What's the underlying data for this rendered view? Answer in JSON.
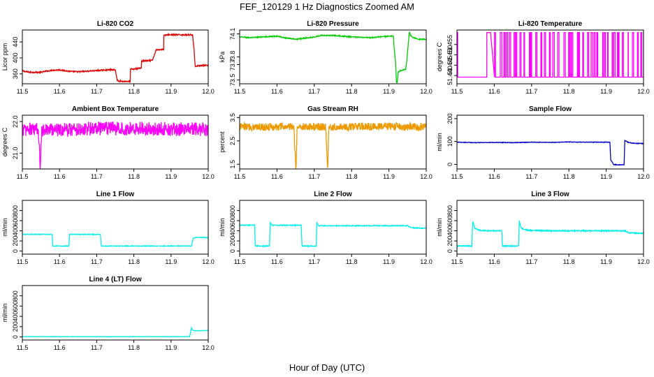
{
  "figure": {
    "title": "FEF_120129  1 Hz Diagnostics Zoomed AM",
    "xlabel": "Hour of Day (UTC)"
  },
  "chart_data": [
    {
      "type": "line",
      "title": "Li-820 CO2",
      "ylabel": "Licor ppm",
      "color": "#dd0000",
      "xlim": [
        11.5,
        12.0
      ],
      "ylim": [
        335,
        470
      ],
      "xticks": [
        11.5,
        11.6,
        11.7,
        11.8,
        11.9,
        12.0
      ],
      "xtick_labels": [
        "11.5",
        "11.6",
        "11.7",
        "11.8",
        "11.9",
        "12.0"
      ],
      "yticks": [
        360,
        400,
        440
      ],
      "ytick_labels": [
        "360",
        "400",
        "440"
      ],
      "noise": 1.5,
      "series": [
        {
          "name": "CO2",
          "x": [
            11.5,
            11.505,
            11.52,
            11.55,
            11.56,
            11.58,
            11.6,
            11.63,
            11.65,
            11.68,
            11.7,
            11.73,
            11.75,
            11.755,
            11.76,
            11.79,
            11.79,
            11.8,
            11.81,
            11.82,
            11.82,
            11.84,
            11.85,
            11.85,
            11.86,
            11.87,
            11.88,
            11.88,
            11.9,
            11.92,
            11.95,
            11.958,
            11.962,
            11.965,
            11.97,
            11.98,
            12.0
          ],
          "y": [
            368,
            366,
            364,
            364,
            366,
            369,
            370,
            366,
            365,
            367,
            368,
            370,
            370,
            345,
            341,
            341,
            372,
            372,
            373,
            375,
            392,
            393,
            394,
            394,
            420,
            421,
            421,
            457,
            458,
            458,
            458,
            458,
            420,
            378,
            380,
            381,
            381
          ]
        }
      ]
    },
    {
      "type": "line",
      "title": "Li-820 Pressure",
      "ylabel": "kPa",
      "color": "#00cc00",
      "xlim": [
        11.5,
        12.0
      ],
      "ylim": [
        73.45,
        74.15
      ],
      "xticks": [
        11.5,
        11.6,
        11.7,
        11.8,
        11.9,
        12.0
      ],
      "xtick_labels": [
        "11.5",
        "11.6",
        "11.7",
        "11.8",
        "11.9",
        "12.0"
      ],
      "yticks": [
        73.5,
        73.7,
        73.8,
        74.1
      ],
      "ytick_labels": [
        "73.5",
        "73.7",
        "73.8",
        "74.1"
      ],
      "noise": 0.006,
      "series": [
        {
          "name": "Pressure",
          "x": [
            11.5,
            11.53,
            11.56,
            11.6,
            11.62,
            11.65,
            11.7,
            11.72,
            11.75,
            11.8,
            11.85,
            11.9,
            11.912,
            11.915,
            11.918,
            11.92,
            11.922,
            11.925,
            11.93,
            11.945,
            11.948,
            11.952,
            11.955,
            11.958,
            11.965,
            11.98,
            12.0
          ],
          "y": [
            74.06,
            74.05,
            74.06,
            74.07,
            74.05,
            74.03,
            74.06,
            74.08,
            74.08,
            74.06,
            74.05,
            74.07,
            74.07,
            73.86,
            73.72,
            73.48,
            73.46,
            73.6,
            73.62,
            73.64,
            73.75,
            73.98,
            74.13,
            74.08,
            74.05,
            74.03,
            74.03
          ]
        }
      ]
    },
    {
      "type": "line",
      "title": "Li-820 Temperature",
      "ylabel": "degrees C",
      "color": "#ff00ff",
      "xlim": [
        11.5,
        12.0
      ],
      "ylim": [
        51.436,
        51.462
      ],
      "xticks": [
        11.5,
        11.6,
        11.7,
        11.8,
        11.9,
        12.0
      ],
      "xtick_labels": [
        "11.5",
        "11.6",
        "11.7",
        "11.8",
        "11.9",
        "12.0"
      ],
      "yticks": [
        51.44,
        51.445,
        51.45,
        51.455
      ],
      "ytick_labels": [
        "51.440",
        "51.445",
        "51.450",
        "51.455"
      ],
      "noise": 0,
      "switching": {
        "low": 51.4392,
        "high": 51.4608,
        "segments": [
          [
            11.5,
            11.502,
            "high"
          ],
          [
            11.502,
            11.58,
            "low"
          ],
          [
            11.58,
            11.59,
            "high"
          ],
          [
            11.59,
            12.0,
            "toggle"
          ]
        ]
      },
      "series": [
        {
          "name": "Temperature",
          "x": [],
          "y": []
        }
      ]
    },
    {
      "type": "line",
      "title": "Ambient Box Temperature",
      "ylabel": "degrees C",
      "color": "#ff00ff",
      "xlim": [
        11.5,
        12.0
      ],
      "ylim": [
        20.5,
        22.2
      ],
      "xticks": [
        11.5,
        11.6,
        11.7,
        11.8,
        11.9,
        12.0
      ],
      "xtick_labels": [
        "11.5",
        "11.6",
        "11.7",
        "11.8",
        "11.9",
        "12.0"
      ],
      "yticks": [
        21.0,
        22.0
      ],
      "ytick_labels": [
        "21.0",
        "22.0"
      ],
      "noise": 0.22,
      "series": [
        {
          "name": "Box Temp",
          "x": [
            11.5,
            11.54,
            11.545,
            11.548,
            11.552,
            11.6,
            11.7,
            11.8,
            11.9,
            12.0
          ],
          "y": [
            21.75,
            21.75,
            21.4,
            20.6,
            21.75,
            21.75,
            21.78,
            21.78,
            21.76,
            21.75
          ]
        }
      ]
    },
    {
      "type": "line",
      "title": "Gas Stream RH",
      "ylabel": "percent",
      "color": "#ee9900",
      "xlim": [
        11.5,
        12.0
      ],
      "ylim": [
        1.3,
        3.6
      ],
      "xticks": [
        11.5,
        11.6,
        11.7,
        11.8,
        11.9,
        12.0
      ],
      "xtick_labels": [
        "11.5",
        "11.6",
        "11.7",
        "11.8",
        "11.9",
        "12.0"
      ],
      "yticks": [
        1.5,
        2.5,
        3.5
      ],
      "ytick_labels": [
        "1.5",
        "2.5",
        "3.5"
      ],
      "noise": 0.17,
      "series": [
        {
          "name": "RH",
          "x": [
            11.5,
            11.645,
            11.648,
            11.651,
            11.654,
            11.73,
            11.733,
            11.736,
            11.739,
            11.8,
            11.9,
            12.0
          ],
          "y": [
            3.1,
            3.1,
            2.2,
            1.3,
            3.1,
            3.1,
            2.3,
            1.35,
            3.1,
            3.1,
            3.12,
            3.1
          ]
        }
      ]
    },
    {
      "type": "line",
      "title": "Sample Flow",
      "ylabel": "ml/min",
      "color": "#0000cc",
      "xlim": [
        11.5,
        12.0
      ],
      "ylim": [
        -20,
        215
      ],
      "xticks": [
        11.5,
        11.6,
        11.7,
        11.8,
        11.9,
        12.0
      ],
      "xtick_labels": [
        "11.5",
        "11.6",
        "11.7",
        "11.8",
        "11.9",
        "12.0"
      ],
      "yticks": [
        0,
        100,
        200
      ],
      "ytick_labels": [
        "0",
        "100",
        "200"
      ],
      "noise": 1.2,
      "series": [
        {
          "name": "Sample Flow",
          "x": [
            11.5,
            11.55,
            11.6,
            11.65,
            11.7,
            11.75,
            11.8,
            11.85,
            11.91,
            11.912,
            11.92,
            11.94,
            11.948,
            11.95,
            11.955,
            11.96,
            11.98,
            12.0
          ],
          "y": [
            97,
            95,
            96,
            95,
            97,
            96,
            98,
            97,
            97,
            20,
            -1,
            -2,
            -1,
            105,
            100,
            95,
            92,
            91
          ]
        }
      ]
    },
    {
      "type": "line",
      "title": "Line 1 Flow",
      "ylabel": "ml/min",
      "color": "#00eeee",
      "xlim": [
        11.5,
        12.0
      ],
      "ylim": [
        -60,
        1000
      ],
      "xticks": [
        11.5,
        11.6,
        11.7,
        11.8,
        11.9,
        12.0
      ],
      "xtick_labels": [
        "11.5",
        "11.6",
        "11.7",
        "11.8",
        "11.9",
        "12.0"
      ],
      "yticks": [
        0,
        200,
        400,
        600,
        800
      ],
      "ytick_labels": [
        "0",
        "200",
        "400",
        "600",
        "800"
      ],
      "noise": 6,
      "series": [
        {
          "name": "Line 1",
          "x": [
            11.5,
            11.58,
            11.582,
            11.625,
            11.627,
            11.7,
            11.71,
            11.712,
            11.8,
            11.9,
            11.955,
            11.96,
            11.97,
            12.0
          ],
          "y": [
            330,
            330,
            100,
            100,
            330,
            330,
            330,
            100,
            100,
            100,
            100,
            260,
            270,
            265
          ]
        }
      ]
    },
    {
      "type": "line",
      "title": "Line 2 Flow",
      "ylabel": "ml/min",
      "color": "#00eeee",
      "xlim": [
        11.5,
        12.0
      ],
      "ylim": [
        -60,
        1000
      ],
      "xticks": [
        11.5,
        11.6,
        11.7,
        11.8,
        11.9,
        12.0
      ],
      "xtick_labels": [
        "11.5",
        "11.6",
        "11.7",
        "11.8",
        "11.9",
        "12.0"
      ],
      "yticks": [
        0,
        200,
        400,
        600,
        800
      ],
      "ytick_labels": [
        "0",
        "200",
        "400",
        "600",
        "800"
      ],
      "noise": 8,
      "series": [
        {
          "name": "Line 2",
          "x": [
            11.5,
            11.54,
            11.542,
            11.58,
            11.582,
            11.587,
            11.665,
            11.667,
            11.705,
            11.707,
            11.712,
            11.8,
            11.9,
            11.95,
            11.96,
            12.0
          ],
          "y": [
            510,
            510,
            100,
            100,
            560,
            510,
            510,
            100,
            100,
            560,
            500,
            500,
            500,
            500,
            460,
            450
          ]
        }
      ]
    },
    {
      "type": "line",
      "title": "Line 3 Flow",
      "ylabel": "ml/min",
      "color": "#00eeee",
      "xlim": [
        11.5,
        12.0
      ],
      "ylim": [
        -60,
        1000
      ],
      "xticks": [
        11.5,
        11.6,
        11.7,
        11.8,
        11.9,
        12.0
      ],
      "xtick_labels": [
        "11.5",
        "11.6",
        "11.7",
        "11.8",
        "11.9",
        "12.0"
      ],
      "yticks": [
        0,
        200,
        400,
        600,
        800
      ],
      "ytick_labels": [
        "0",
        "200",
        "400",
        "600",
        "800"
      ],
      "noise": 10,
      "series": [
        {
          "name": "Line 3",
          "x": [
            11.5,
            11.54,
            11.542,
            11.548,
            11.56,
            11.58,
            11.62,
            11.622,
            11.665,
            11.667,
            11.672,
            11.69,
            11.75,
            11.85,
            11.95,
            11.96,
            12.0
          ],
          "y": [
            100,
            100,
            580,
            450,
            410,
            400,
            400,
            100,
            100,
            600,
            450,
            410,
            400,
            400,
            400,
            360,
            350
          ]
        }
      ]
    },
    {
      "type": "line",
      "title": "Line 4 (LT) Flow",
      "ylabel": "ml/min",
      "color": "#00eeee",
      "xlim": [
        11.5,
        12.0
      ],
      "ylim": [
        -60,
        1000
      ],
      "xticks": [
        11.5,
        11.6,
        11.7,
        11.8,
        11.9,
        12.0
      ],
      "xtick_labels": [
        "11.5",
        "11.6",
        "11.7",
        "11.8",
        "11.9",
        "12.0"
      ],
      "yticks": [
        0,
        200,
        400,
        600,
        800
      ],
      "ytick_labels": [
        "0",
        "200",
        "400",
        "600",
        "800"
      ],
      "noise": 3,
      "series": [
        {
          "name": "Line 4",
          "x": [
            11.5,
            11.6,
            11.7,
            11.8,
            11.9,
            11.95,
            11.955,
            11.958,
            11.965,
            12.0
          ],
          "y": [
            5,
            5,
            4,
            5,
            5,
            5,
            180,
            130,
            120,
            125
          ]
        }
      ]
    }
  ]
}
